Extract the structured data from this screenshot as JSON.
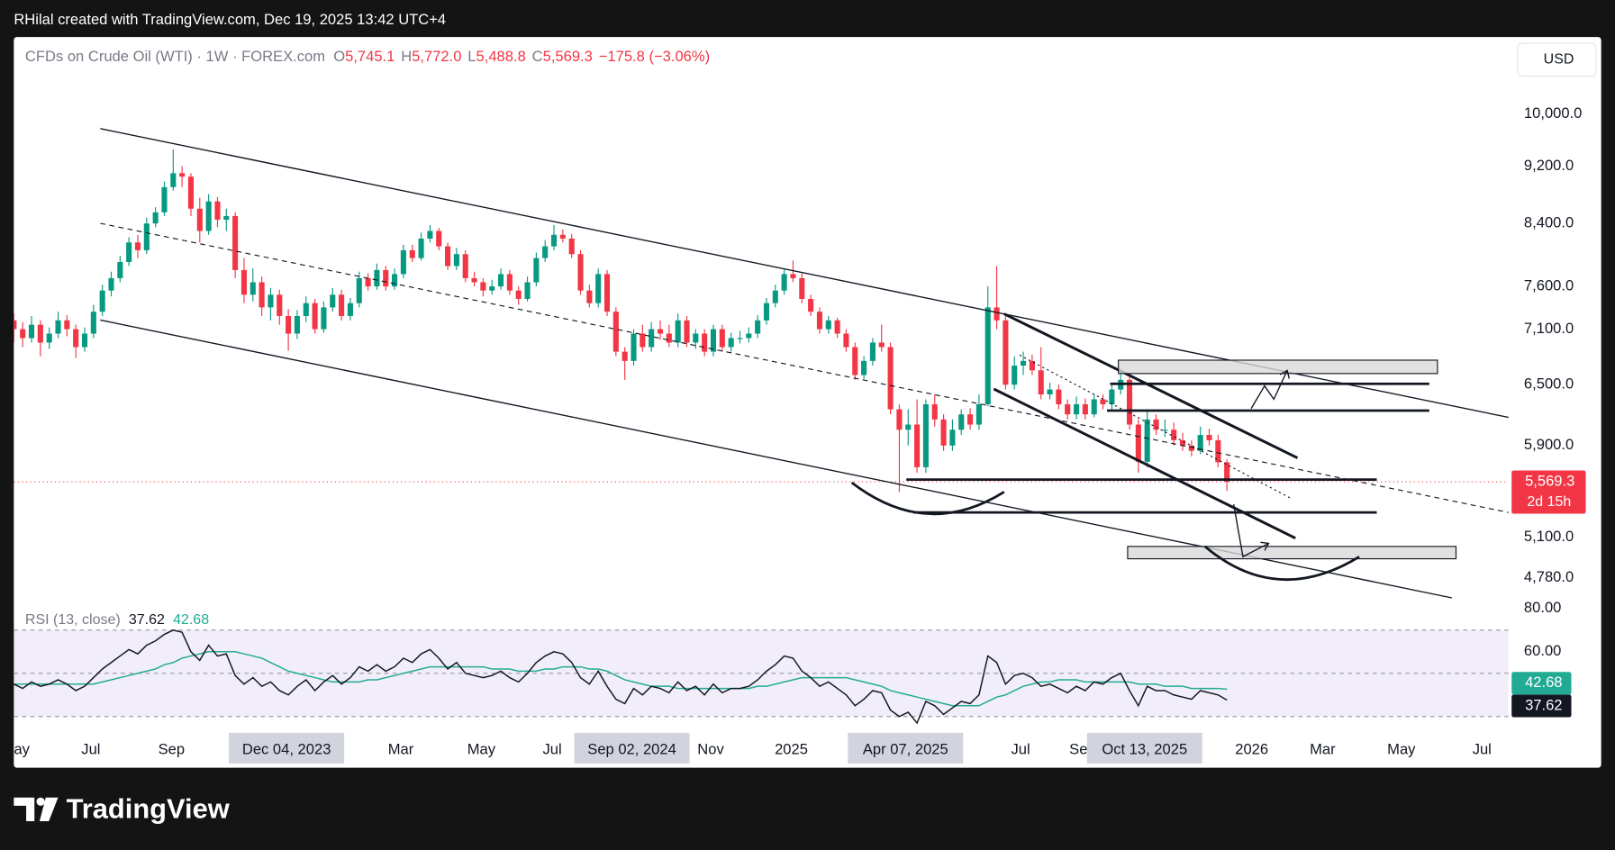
{
  "header": {
    "attribution": "RHilal created with TradingView.com, Dec 19, 2025 13:42 UTC+4"
  },
  "footer": {
    "logo": "TradingView"
  },
  "chart_data": {
    "type": "candlestick",
    "title": "CFDs on Crude Oil (WTI) · 1W · FOREX.com",
    "ohlc_legend": [
      {
        "label": "O",
        "value": "5,745.1"
      },
      {
        "label": "H",
        "value": "5,772.0"
      },
      {
        "label": "L",
        "value": "5,488.8"
      },
      {
        "label": "C",
        "value": "5,569.3"
      }
    ],
    "change": "−175.8 (−3.06%)",
    "currency": "USD",
    "log_scale": true,
    "ylim": [
      4600,
      11300
    ],
    "yticks": [
      {
        "value": 10000,
        "label": "10,000.0"
      },
      {
        "value": 9200,
        "label": "9,200.0"
      },
      {
        "value": 8400,
        "label": "8,400.0"
      },
      {
        "value": 7600,
        "label": "7,600.0"
      },
      {
        "value": 7100,
        "label": "7,100.0"
      },
      {
        "value": 6500,
        "label": "6,500.0"
      },
      {
        "value": 5900,
        "label": "5,900.0"
      },
      {
        "value": 5100,
        "label": "5,100.0"
      },
      {
        "value": 4780,
        "label": "4,780.0"
      }
    ],
    "xlim": [
      0,
      168.8
    ],
    "xticks": [
      {
        "value": 0.2,
        "label": "May"
      },
      {
        "value": 8.7,
        "label": "Jul"
      },
      {
        "value": 17.8,
        "label": "Sep"
      },
      {
        "value": 30.8,
        "label": "Dec 04, 2023",
        "highlight": true
      },
      {
        "value": 43.7,
        "label": "Mar"
      },
      {
        "value": 52.8,
        "label": "May"
      },
      {
        "value": 60.8,
        "label": "Jul"
      },
      {
        "value": 69.8,
        "label": "Sep 02, 2024",
        "highlight": true
      },
      {
        "value": 78.7,
        "label": "Nov"
      },
      {
        "value": 87.8,
        "label": "2025"
      },
      {
        "value": 100.7,
        "label": "Apr 07, 2025",
        "highlight": true
      },
      {
        "value": 113.7,
        "label": "Jul"
      },
      {
        "value": 120.7,
        "label": "Sep"
      },
      {
        "value": 127.7,
        "label": "Oct 13, 2025",
        "highlight": true
      },
      {
        "value": 139.8,
        "label": "2026"
      },
      {
        "value": 147.8,
        "label": "Mar"
      },
      {
        "value": 156.7,
        "label": "May"
      },
      {
        "value": 165.8,
        "label": "Jul"
      }
    ],
    "up_color": "#089981",
    "down_color": "#f23645",
    "last_price": {
      "value": 5569.3,
      "label": "5,569.3",
      "countdown": "2d 15h"
    },
    "candles": [
      [
        7200,
        7280,
        6950,
        7100
      ],
      [
        7100,
        7180,
        6900,
        7000
      ],
      [
        7000,
        7250,
        6950,
        7150
      ],
      [
        7150,
        7200,
        6800,
        6950
      ],
      [
        6950,
        7120,
        6880,
        7050
      ],
      [
        7050,
        7300,
        7000,
        7200
      ],
      [
        7200,
        7260,
        7020,
        7100
      ],
      [
        7100,
        7150,
        6780,
        6900
      ],
      [
        6900,
        7120,
        6850,
        7050
      ],
      [
        7050,
        7380,
        7000,
        7300
      ],
      [
        7300,
        7620,
        7250,
        7550
      ],
      [
        7550,
        7780,
        7480,
        7700
      ],
      [
        7700,
        7980,
        7650,
        7900
      ],
      [
        7900,
        8220,
        7850,
        8150
      ],
      [
        8150,
        8250,
        7950,
        8050
      ],
      [
        8050,
        8480,
        8000,
        8400
      ],
      [
        8400,
        8620,
        8350,
        8550
      ],
      [
        8550,
        8980,
        8500,
        8900
      ],
      [
        8900,
        9450,
        8850,
        9100
      ],
      [
        9100,
        9200,
        8900,
        9050
      ],
      [
        9050,
        9100,
        8500,
        8600
      ],
      [
        8600,
        8750,
        8150,
        8300
      ],
      [
        8300,
        8800,
        8250,
        8700
      ],
      [
        8700,
        8760,
        8350,
        8450
      ],
      [
        8450,
        8600,
        8300,
        8500
      ],
      [
        8500,
        8550,
        7700,
        7800
      ],
      [
        7800,
        7950,
        7400,
        7500
      ],
      [
        7500,
        7820,
        7420,
        7650
      ],
      [
        7650,
        7720,
        7250,
        7350
      ],
      [
        7350,
        7580,
        7200,
        7500
      ],
      [
        7500,
        7560,
        7150,
        7250
      ],
      [
        7250,
        7330,
        6860,
        7050
      ],
      [
        7050,
        7320,
        6990,
        7250
      ],
      [
        7250,
        7480,
        7180,
        7400
      ],
      [
        7400,
        7450,
        7050,
        7100
      ],
      [
        7100,
        7420,
        7060,
        7350
      ],
      [
        7350,
        7580,
        7300,
        7500
      ],
      [
        7500,
        7560,
        7200,
        7250
      ],
      [
        7250,
        7460,
        7200,
        7400
      ],
      [
        7400,
        7780,
        7350,
        7700
      ],
      [
        7700,
        7760,
        7550,
        7600
      ],
      [
        7600,
        7880,
        7560,
        7800
      ],
      [
        7800,
        7850,
        7550,
        7600
      ],
      [
        7600,
        7820,
        7560,
        7750
      ],
      [
        7750,
        8120,
        7700,
        8050
      ],
      [
        8050,
        8120,
        7900,
        7950
      ],
      [
        7950,
        8280,
        7920,
        8200
      ],
      [
        8200,
        8380,
        8150,
        8300
      ],
      [
        8300,
        8340,
        8050,
        8100
      ],
      [
        8100,
        8150,
        7800,
        7850
      ],
      [
        7850,
        8080,
        7800,
        8000
      ],
      [
        8000,
        8050,
        7650,
        7700
      ],
      [
        7700,
        7780,
        7600,
        7650
      ],
      [
        7650,
        7700,
        7480,
        7550
      ],
      [
        7550,
        7680,
        7500,
        7600
      ],
      [
        7600,
        7820,
        7560,
        7750
      ],
      [
        7750,
        7800,
        7500,
        7550
      ],
      [
        7550,
        7600,
        7380,
        7450
      ],
      [
        7450,
        7720,
        7420,
        7650
      ],
      [
        7650,
        8020,
        7600,
        7950
      ],
      [
        7950,
        8180,
        7900,
        8100
      ],
      [
        8100,
        8380,
        8050,
        8250
      ],
      [
        8250,
        8320,
        8150,
        8200
      ],
      [
        8200,
        8260,
        7950,
        8000
      ],
      [
        8000,
        8050,
        7500,
        7550
      ],
      [
        7550,
        7620,
        7350,
        7400
      ],
      [
        7400,
        7820,
        7350,
        7750
      ],
      [
        7750,
        7800,
        7250,
        7300
      ],
      [
        7300,
        7350,
        6800,
        6850
      ],
      [
        6850,
        6900,
        6550,
        6750
      ],
      [
        6750,
        7100,
        6700,
        7050
      ],
      [
        7050,
        7150,
        6850,
        6900
      ],
      [
        6900,
        7180,
        6850,
        7100
      ],
      [
        7100,
        7200,
        6980,
        7050
      ],
      [
        7050,
        7150,
        6900,
        6950
      ],
      [
        6950,
        7280,
        6900,
        7200
      ],
      [
        7200,
        7250,
        6900,
        6950
      ],
      [
        6950,
        7100,
        6880,
        7050
      ],
      [
        7050,
        7100,
        6800,
        6850
      ],
      [
        6850,
        7150,
        6800,
        7100
      ],
      [
        7100,
        7150,
        6850,
        6900
      ],
      [
        6900,
        7060,
        6850,
        7000
      ],
      [
        7000,
        7080,
        6940,
        7000
      ],
      [
        7000,
        7120,
        6950,
        7050
      ],
      [
        7050,
        7260,
        7000,
        7200
      ],
      [
        7200,
        7460,
        7150,
        7400
      ],
      [
        7400,
        7620,
        7350,
        7550
      ],
      [
        7550,
        7820,
        7500,
        7750
      ],
      [
        7750,
        7920,
        7650,
        7700
      ],
      [
        7700,
        7760,
        7400,
        7450
      ],
      [
        7450,
        7500,
        7250,
        7300
      ],
      [
        7300,
        7350,
        7050,
        7100
      ],
      [
        7100,
        7250,
        7050,
        7200
      ],
      [
        7200,
        7230,
        7000,
        7050
      ],
      [
        7050,
        7100,
        6850,
        6900
      ],
      [
        6900,
        6950,
        6550,
        6600
      ],
      [
        6600,
        6800,
        6560,
        6750
      ],
      [
        6750,
        7000,
        6700,
        6950
      ],
      [
        6950,
        7150,
        6850,
        6900
      ],
      [
        6900,
        6950,
        6200,
        6250
      ],
      [
        6250,
        6300,
        5480,
        6050
      ],
      [
        6050,
        6250,
        5900,
        6100
      ],
      [
        6100,
        6350,
        5650,
        5700
      ],
      [
        5700,
        6350,
        5650,
        6300
      ],
      [
        6300,
        6400,
        6080,
        6150
      ],
      [
        6150,
        6200,
        5850,
        5900
      ],
      [
        5900,
        6150,
        5850,
        6050
      ],
      [
        6050,
        6250,
        6000,
        6200
      ],
      [
        6200,
        6260,
        6050,
        6100
      ],
      [
        6100,
        6400,
        6050,
        6300
      ],
      [
        6300,
        7600,
        6280,
        7350
      ],
      [
        7350,
        7850,
        7100,
        7200
      ],
      [
        7200,
        7250,
        6450,
        6500
      ],
      [
        6500,
        6800,
        6450,
        6700
      ],
      [
        6700,
        6850,
        6600,
        6750
      ],
      [
        6750,
        6820,
        6600,
        6650
      ],
      [
        6650,
        6900,
        6350,
        6400
      ],
      [
        6400,
        6520,
        6350,
        6450
      ],
      [
        6450,
        6500,
        6250,
        6300
      ],
      [
        6300,
        6350,
        6150,
        6200
      ],
      [
        6200,
        6380,
        6150,
        6300
      ],
      [
        6300,
        6360,
        6150,
        6200
      ],
      [
        6200,
        6400,
        6170,
        6350
      ],
      [
        6350,
        6400,
        6250,
        6300
      ],
      [
        6300,
        6500,
        6250,
        6450
      ],
      [
        6450,
        6620,
        6400,
        6550
      ],
      [
        6550,
        6600,
        6050,
        6100
      ],
      [
        6100,
        6150,
        5650,
        5750
      ],
      [
        5750,
        6250,
        5700,
        6150
      ],
      [
        6150,
        6200,
        6000,
        6050
      ],
      [
        6050,
        6150,
        5980,
        6050
      ],
      [
        6050,
        6120,
        5900,
        5950
      ],
      [
        5950,
        6020,
        5850,
        5900
      ],
      [
        5900,
        5950,
        5800,
        5850
      ],
      [
        5850,
        6080,
        5820,
        6000
      ],
      [
        6000,
        6060,
        5900,
        5950
      ],
      [
        5950,
        6000,
        5700,
        5745.1
      ],
      [
        5745.1,
        5772.0,
        5488.8,
        5569.3
      ]
    ],
    "rsi": {
      "title": "RSI (13, close)",
      "ylim": [
        23,
        83
      ],
      "yticks": [
        {
          "value": 80,
          "label": "80.00"
        },
        {
          "value": 60,
          "label": "60.00"
        }
      ],
      "band": [
        30,
        70
      ],
      "midline": 50,
      "band_color": "#7e57c2",
      "series": [
        {
          "color": "#131722",
          "last_label": "37.62",
          "values": [
            45,
            43,
            46,
            44,
            45,
            47,
            45,
            42,
            44,
            48,
            52,
            55,
            58,
            61,
            59,
            63,
            65,
            68,
            70,
            69,
            60,
            56,
            63,
            58,
            59,
            49,
            45,
            48,
            44,
            46,
            42,
            40,
            44,
            47,
            42,
            46,
            49,
            45,
            48,
            53,
            51,
            54,
            51,
            53,
            57,
            55,
            59,
            61,
            57,
            52,
            55,
            50,
            49,
            48,
            49,
            51,
            48,
            46,
            50,
            55,
            58,
            60,
            59,
            55,
            48,
            45,
            51,
            44,
            38,
            36,
            43,
            40,
            44,
            43,
            41,
            46,
            42,
            44,
            40,
            45,
            41,
            43,
            43,
            44,
            47,
            51,
            54,
            58,
            57,
            51,
            48,
            44,
            46,
            43,
            40,
            35,
            38,
            42,
            41,
            33,
            30,
            32,
            27,
            37,
            35,
            31,
            34,
            37,
            36,
            40,
            58,
            55,
            45,
            49,
            50,
            48,
            44,
            45,
            43,
            41,
            44,
            42,
            46,
            45,
            48,
            50,
            42,
            35,
            44,
            42,
            42,
            40,
            39,
            38,
            42,
            41,
            40,
            37.62
          ]
        },
        {
          "color": "#22ab94",
          "last_label": "42.68",
          "values": [
            45,
            45,
            45,
            45,
            45,
            45,
            45,
            45,
            45,
            45,
            46,
            47,
            48,
            49,
            50,
            51,
            52,
            54,
            55,
            57,
            58,
            59,
            60,
            60,
            60,
            60,
            59,
            58,
            57,
            55,
            53,
            51,
            50,
            49,
            48,
            47,
            46,
            46,
            46,
            46,
            47,
            47,
            48,
            49,
            50,
            51,
            52,
            53,
            53,
            53,
            53,
            53,
            53,
            53,
            52,
            52,
            52,
            51,
            51,
            51,
            52,
            52,
            53,
            53,
            53,
            52,
            52,
            51,
            49,
            47,
            46,
            45,
            44,
            44,
            44,
            43,
            43,
            43,
            43,
            43,
            43,
            43,
            43,
            43,
            44,
            44,
            45,
            46,
            47,
            48,
            48,
            48,
            48,
            48,
            48,
            47,
            46,
            45,
            44,
            42,
            41,
            40,
            39,
            38,
            37,
            36,
            35,
            35,
            35,
            35,
            37,
            39,
            40,
            42,
            44,
            45,
            46,
            46,
            47,
            47,
            47,
            46,
            46,
            46,
            46,
            46,
            46,
            45,
            45,
            45,
            44,
            44,
            44,
            43,
            43,
            43,
            43,
            42.68
          ]
        }
      ]
    }
  }
}
